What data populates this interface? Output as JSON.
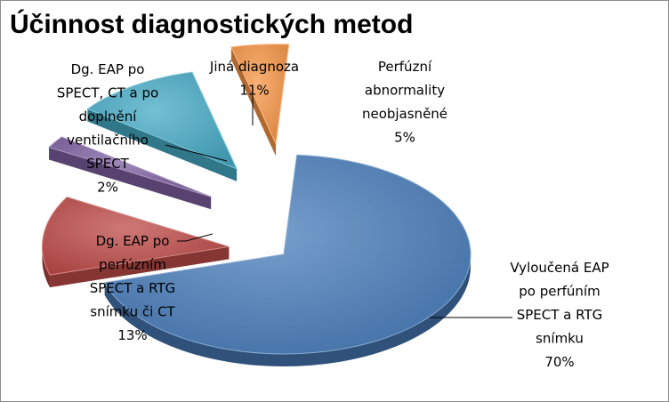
{
  "chart_data": {
    "type": "pie",
    "title": "Účinnost diagnostických metod",
    "style": "3d-exploded",
    "slices": [
      {
        "label_lines": [
          "Vyloučená EAP",
          "po perfúním",
          "SPECT a  RTG",
          "snímku"
        ],
        "value": 70,
        "value_label": "70%",
        "color": "#4a7ebb"
      },
      {
        "label_lines": [
          "Dg. EAP po",
          "perfúzním",
          "SPECT a RTG",
          "snímku či CT"
        ],
        "value": 13,
        "value_label": "13%",
        "color": "#be4b48"
      },
      {
        "label_lines": [
          "Dg. EAP po",
          "SPECT, CT a po",
          "doplnění",
          "ventilačního",
          "SPECT"
        ],
        "value": 2,
        "value_label": "2%",
        "color": "#7d60a0"
      },
      {
        "label_lines": [
          "Jiná diagnoza"
        ],
        "value": 11,
        "value_label": "11%",
        "color": "#46aac5"
      },
      {
        "label_lines": [
          "Perfúzní",
          "abnormality",
          "neobjasněné"
        ],
        "value": 5,
        "value_label": "5%",
        "color": "#f79646"
      }
    ]
  }
}
